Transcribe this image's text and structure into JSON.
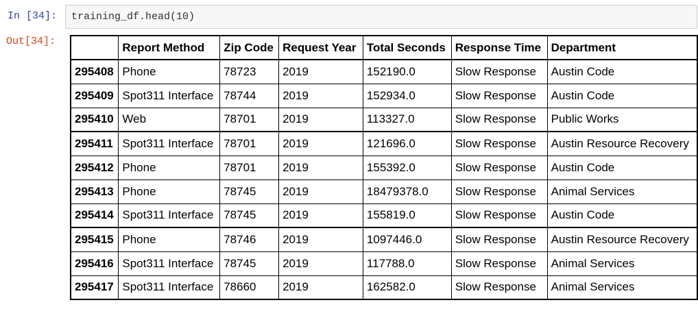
{
  "input_prompt": "In [34]:",
  "output_prompt": "Out[34]:",
  "code": "training_df.head(10)",
  "table": {
    "index_header": "",
    "columns": [
      "Report Method",
      "Zip Code",
      "Request Year",
      "Total Seconds",
      "Response Time",
      "Department"
    ],
    "rows": [
      {
        "index": "295408",
        "cells": [
          "Phone",
          "78723",
          "2019",
          "152190.0",
          "Slow Response",
          "Austin Code"
        ]
      },
      {
        "index": "295409",
        "cells": [
          "Spot311 Interface",
          "78744",
          "2019",
          "152934.0",
          "Slow Response",
          "Austin Code"
        ]
      },
      {
        "index": "295410",
        "cells": [
          "Web",
          "78701",
          "2019",
          "113327.0",
          "Slow Response",
          "Public Works"
        ]
      },
      {
        "index": "295411",
        "cells": [
          "Spot311 Interface",
          "78701",
          "2019",
          "121696.0",
          "Slow Response",
          "Austin Resource Recovery"
        ]
      },
      {
        "index": "295412",
        "cells": [
          "Phone",
          "78701",
          "2019",
          "155392.0",
          "Slow Response",
          "Austin Code"
        ]
      },
      {
        "index": "295413",
        "cells": [
          "Phone",
          "78745",
          "2019",
          "18479378.0",
          "Slow Response",
          "Animal Services"
        ]
      },
      {
        "index": "295414",
        "cells": [
          "Spot311 Interface",
          "78745",
          "2019",
          "155819.0",
          "Slow Response",
          "Austin Code"
        ]
      },
      {
        "index": "295415",
        "cells": [
          "Phone",
          "78746",
          "2019",
          "1097446.0",
          "Slow Response",
          "Austin Resource Recovery"
        ]
      },
      {
        "index": "295416",
        "cells": [
          "Spot311 Interface",
          "78745",
          "2019",
          "117788.0",
          "Slow Response",
          "Animal Services"
        ]
      },
      {
        "index": "295417",
        "cells": [
          "Spot311 Interface",
          "78660",
          "2019",
          "162582.0",
          "Slow Response",
          "Animal Services"
        ]
      }
    ]
  }
}
